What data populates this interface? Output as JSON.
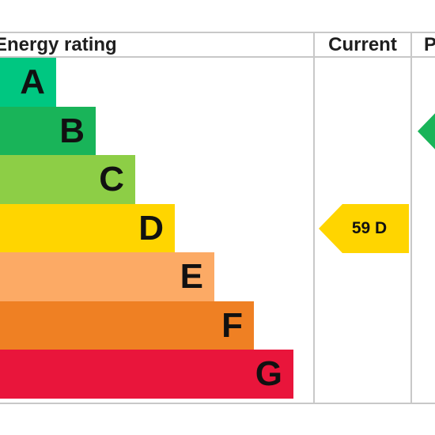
{
  "headers": {
    "rating": "Energy rating",
    "current": "Current",
    "potential": "P"
  },
  "chart_data": {
    "type": "bar",
    "categories": [
      "A",
      "B",
      "C",
      "D",
      "E",
      "F",
      "G"
    ],
    "series": [
      {
        "values": [
          1,
          2,
          3,
          4,
          5,
          6,
          7
        ]
      }
    ],
    "colors": [
      "#00c781",
      "#19b459",
      "#8dce46",
      "#ffd500",
      "#fcaa65",
      "#ef8023",
      "#e9153b"
    ],
    "current": {
      "score": 59,
      "band": "D",
      "text": "59  D",
      "color": "#ffd500"
    },
    "potential": {
      "band": "B",
      "color": "#19b459"
    }
  }
}
